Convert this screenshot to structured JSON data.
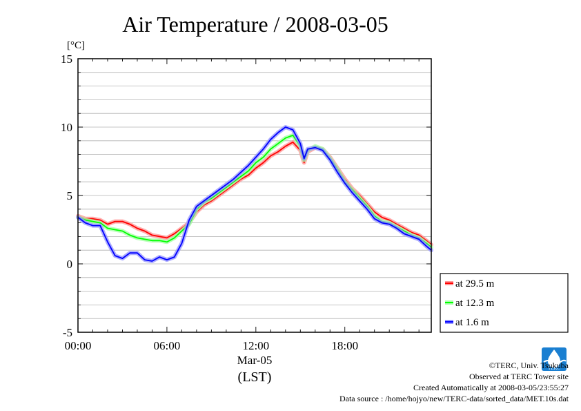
{
  "chart_data": {
    "type": "line",
    "title": "Air Temperature / 2008-03-05",
    "ylabel": "[°C]",
    "xlabel_date": "Mar-05",
    "xlabel_unit": "(LST)",
    "xlim": [
      0,
      23.83
    ],
    "ylim": [
      -5,
      15
    ],
    "yticks": [
      15,
      10,
      5,
      0,
      -5
    ],
    "yticks_labels": [
      "15",
      "10",
      "5",
      "0",
      "-5"
    ],
    "xticks": [
      0,
      6,
      12,
      18
    ],
    "xticks_labels": [
      "00:00",
      "06:00",
      "12:00",
      "18:00"
    ],
    "grid": true,
    "legend_position": "bottom-right outside",
    "x": [
      0,
      0.5,
      1,
      1.5,
      2,
      2.5,
      3,
      3.5,
      4,
      4.5,
      5,
      5.5,
      6,
      6.5,
      7,
      7.5,
      8,
      8.5,
      9,
      9.5,
      10,
      10.5,
      11,
      11.5,
      12,
      12.5,
      13,
      13.5,
      14,
      14.5,
      15,
      15.25,
      15.5,
      16,
      16.5,
      17,
      17.5,
      18,
      18.5,
      19,
      19.5,
      20,
      20.5,
      21,
      21.5,
      22,
      22.5,
      23,
      23.5,
      23.83
    ],
    "series": [
      {
        "name": "at 29.5 m",
        "color": "#ff0000",
        "values": [
          3.5,
          3.3,
          3.3,
          3.2,
          2.9,
          3.1,
          3.1,
          2.9,
          2.6,
          2.4,
          2.1,
          2.0,
          1.9,
          2.2,
          2.6,
          3.0,
          3.8,
          4.3,
          4.6,
          5.0,
          5.4,
          5.8,
          6.2,
          6.5,
          7.0,
          7.4,
          7.9,
          8.2,
          8.6,
          8.9,
          8.3,
          7.4,
          8.2,
          8.5,
          8.4,
          7.8,
          7.0,
          6.2,
          5.5,
          5.0,
          4.4,
          3.8,
          3.4,
          3.2,
          2.9,
          2.6,
          2.3,
          2.1,
          1.7,
          1.4
        ]
      },
      {
        "name": "at 12.3 m",
        "color": "#00ff00",
        "values": [
          3.4,
          3.2,
          3.1,
          3.0,
          2.6,
          2.5,
          2.4,
          2.1,
          1.9,
          1.8,
          1.7,
          1.7,
          1.6,
          1.9,
          2.4,
          2.9,
          4.0,
          4.5,
          4.8,
          5.2,
          5.6,
          6.0,
          6.4,
          6.8,
          7.4,
          7.8,
          8.4,
          8.8,
          9.2,
          9.4,
          8.6,
          7.6,
          8.3,
          8.6,
          8.4,
          7.7,
          6.9,
          6.0,
          5.4,
          4.8,
          4.2,
          3.5,
          3.1,
          3.0,
          2.7,
          2.4,
          2.1,
          1.9,
          1.5,
          1.2
        ]
      },
      {
        "name": "at 1.6 m",
        "color": "#0000ff",
        "values": [
          3.4,
          3.0,
          2.8,
          2.8,
          1.6,
          0.6,
          0.4,
          0.8,
          0.8,
          0.3,
          0.2,
          0.5,
          0.3,
          0.5,
          1.5,
          3.2,
          4.2,
          4.6,
          5.0,
          5.4,
          5.8,
          6.2,
          6.7,
          7.2,
          7.8,
          8.4,
          9.1,
          9.6,
          10.0,
          9.8,
          8.8,
          7.7,
          8.4,
          8.5,
          8.3,
          7.6,
          6.7,
          5.9,
          5.2,
          4.6,
          4.0,
          3.3,
          3.0,
          2.9,
          2.6,
          2.2,
          2.0,
          1.8,
          1.3,
          1.0
        ]
      }
    ]
  },
  "footer": {
    "copyright": "©TERC, Univ. Tsukuba",
    "observed": "Observed at TERC Tower site",
    "created": "Created Automatically at 2008-03-05/23:55:27",
    "source": "Data source : /home/hojyo/new/TERC-data/sorted_data/MET.10s.dat"
  },
  "logo": {
    "text": "TERC"
  }
}
